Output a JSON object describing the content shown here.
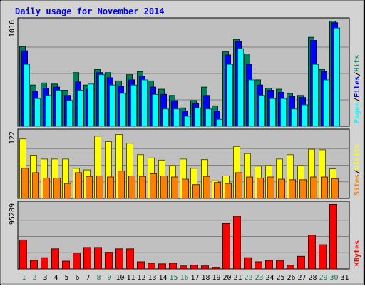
{
  "chart_data": {
    "type": "bar",
    "title": "Daily usage for November 2014",
    "colors": {
      "hits": "#00805c",
      "files": "#0000ff",
      "pages": "#00ffff",
      "visits": "#ffff00",
      "sites": "#ff8000",
      "kbytes": "#ff0000",
      "weekend_day_label": "#00805c",
      "weekday_day_label": "#000000",
      "title": "#0000ff",
      "plot_background": "#c0c0c0",
      "frame_background": "#d3d3d3"
    },
    "categories": [
      "1",
      "2",
      "3",
      "4",
      "5",
      "6",
      "7",
      "8",
      "9",
      "10",
      "11",
      "12",
      "13",
      "14",
      "15",
      "16",
      "17",
      "18",
      "19",
      "20",
      "21",
      "22",
      "23",
      "24",
      "25",
      "26",
      "27",
      "28",
      "29",
      "30",
      "31"
    ],
    "weekend_days": [
      "1",
      "2",
      "8",
      "9",
      "15",
      "16",
      "22",
      "23",
      "29",
      "30"
    ],
    "panels": [
      {
        "id": "hits-files-pages",
        "ymax": 1016,
        "ymax_label": "1016",
        "legend": [
          "Pages",
          "Files",
          "Hits"
        ],
        "legend_separator": "/",
        "series": [
          {
            "name": "Hits",
            "values": [
              770,
              400,
              420,
              410,
              350,
              520,
              400,
              550,
              520,
              440,
              500,
              530,
              440,
              360,
              300,
              180,
              250,
              380,
              200,
              720,
              840,
              700,
              450,
              370,
              360,
              320,
              300,
              860,
              550,
              1016,
              0
            ]
          },
          {
            "name": "Files",
            "values": [
              730,
              340,
              370,
              380,
              300,
              430,
              360,
              520,
              470,
              390,
              450,
              480,
              380,
              310,
              250,
              150,
              220,
              300,
              150,
              690,
              820,
              600,
              400,
              350,
              330,
              290,
              280,
              830,
              530,
              1000,
              0
            ]
          },
          {
            "name": "Pages",
            "values": [
              600,
              270,
              300,
              350,
              250,
              350,
              410,
              500,
              400,
              320,
              400,
              450,
              310,
              170,
              170,
              100,
              180,
              170,
              70,
              600,
              750,
              450,
              300,
              270,
              270,
              170,
              210,
              600,
              450,
              950,
              0
            ]
          }
        ]
      },
      {
        "id": "visits-sites",
        "ymax": 122,
        "ymax_label": "122",
        "legend": [
          "Sites",
          "Visits"
        ],
        "legend_separator": "/",
        "series": [
          {
            "name": "Visits",
            "values": [
              110,
              80,
              73,
              73,
              73,
              56,
              53,
              115,
              105,
              118,
              102,
              81,
              75,
              71,
              61,
              73,
              56,
              72,
              33,
              42,
              96,
              83,
              60,
              61,
              73,
              81,
              61,
              91,
              90,
              55,
              0
            ]
          },
          {
            "name": "Sites",
            "values": [
              56,
              48,
              38,
              38,
              28,
              48,
              41,
              42,
              40,
              51,
              42,
              41,
              46,
              42,
              40,
              36,
              26,
              41,
              30,
              28,
              48,
              40,
              38,
              40,
              36,
              35,
              35,
              40,
              40,
              37,
              0
            ]
          }
        ]
      },
      {
        "id": "kbytes",
        "ymax": 95289,
        "ymax_label": "95289",
        "legend": [
          "KBytes"
        ],
        "legend_separator": "/",
        "series": [
          {
            "name": "KBytes",
            "values": [
              43000,
              13000,
              17000,
              30000,
              12000,
              24000,
              32000,
              32000,
              25000,
              30000,
              30000,
              11000,
              9000,
              8000,
              9000,
              5000,
              6000,
              5000,
              3000,
              67000,
              78000,
              17000,
              11000,
              13000,
              13000,
              6000,
              19000,
              50000,
              36000,
              95289,
              0
            ]
          }
        ]
      }
    ]
  }
}
